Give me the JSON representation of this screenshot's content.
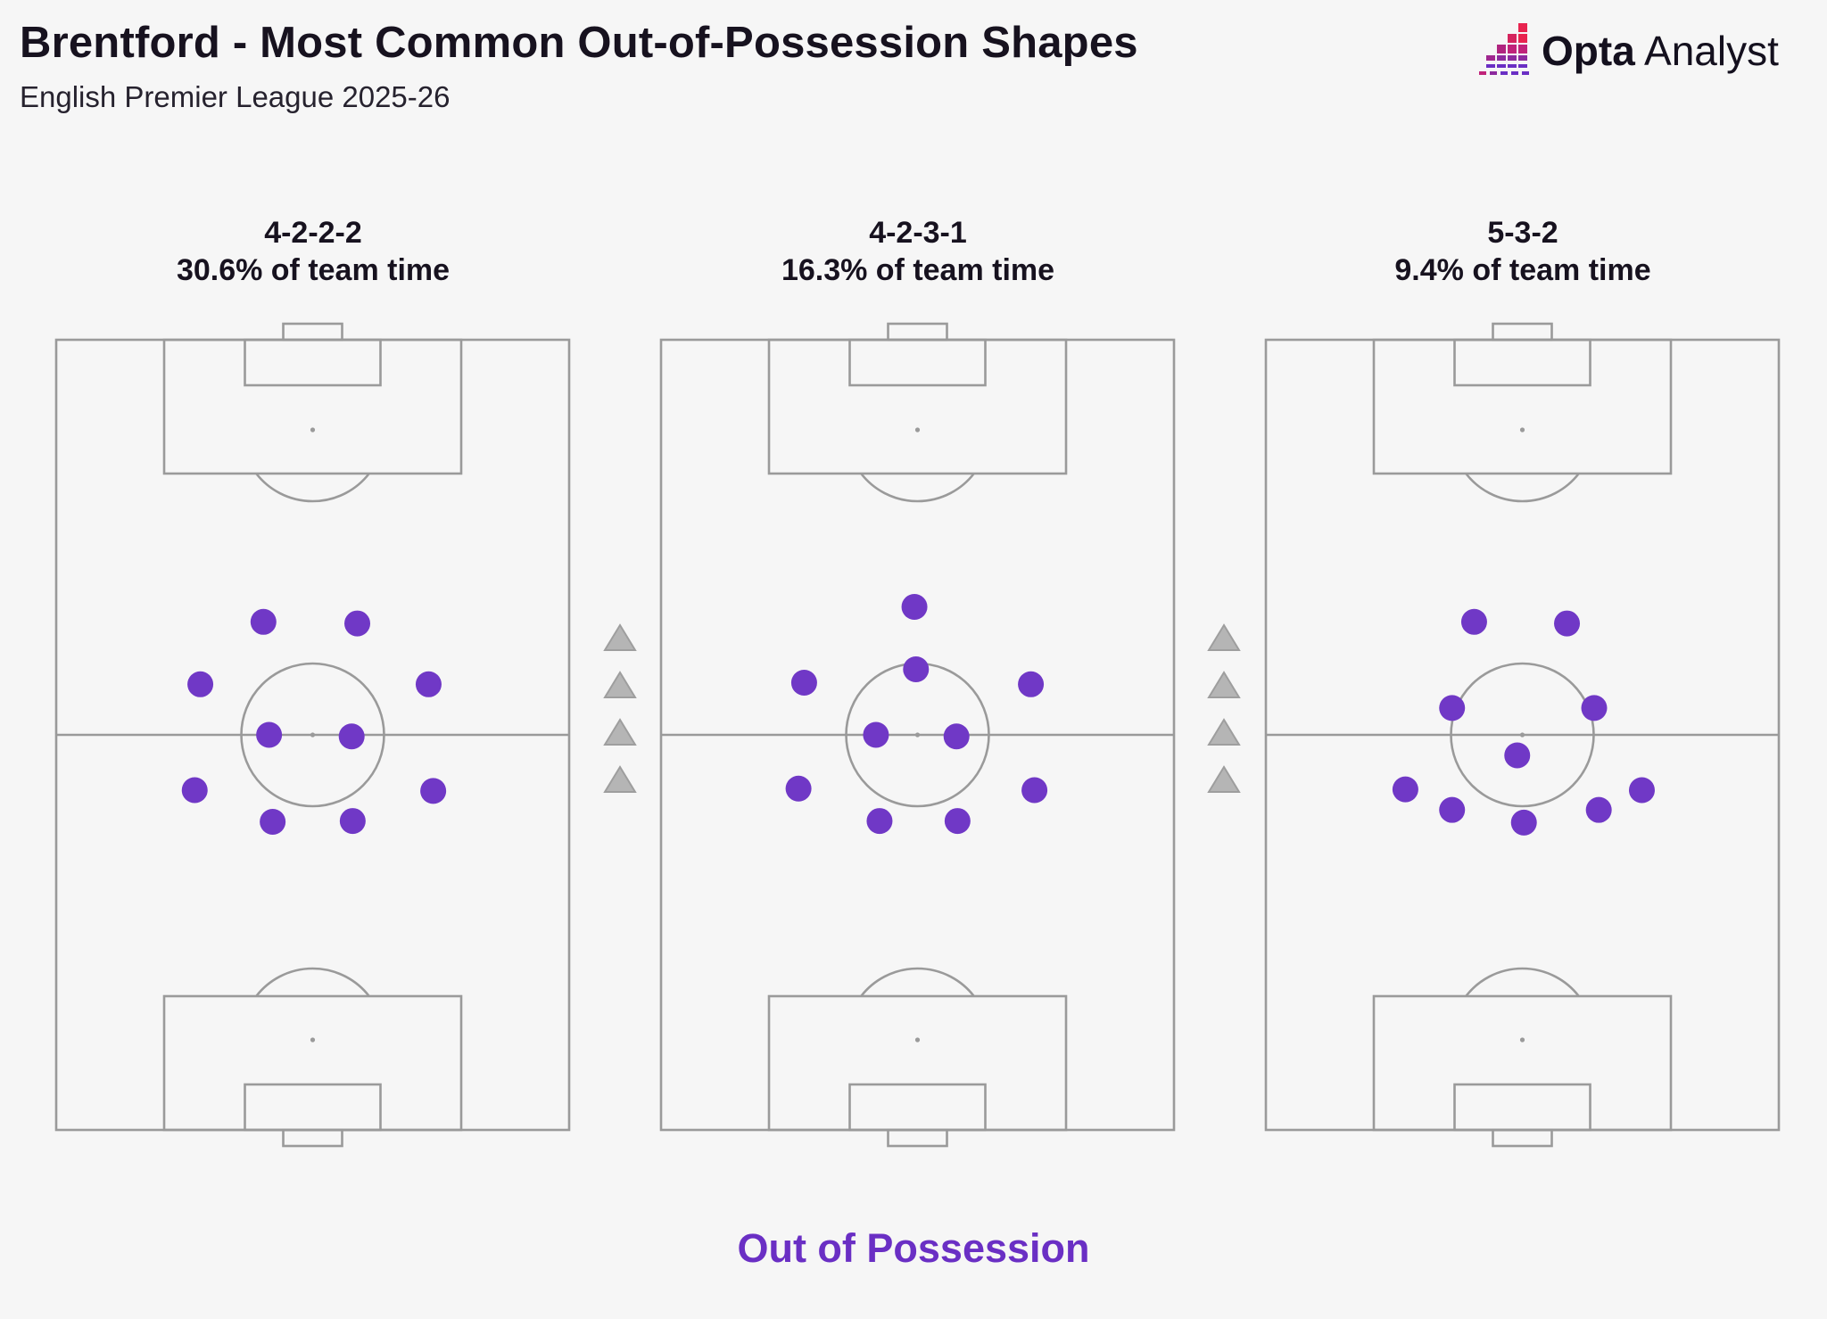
{
  "header": {
    "title": "Brentford - Most Common Out-of-Possession Shapes",
    "subtitle": "English Premier League 2025-26"
  },
  "brand": {
    "name_bold": "Opta",
    "name_light": " Analyst",
    "logo_colors": [
      "#e8244f",
      "#c0237a",
      "#8d2a9e",
      "#6a2fc4"
    ]
  },
  "footer": {
    "label": "Out of Possession"
  },
  "colors": {
    "background": "#f6f6f6",
    "pitch_lines": "#9a9a9a",
    "player_dot": "#7038c6",
    "footer_text": "#6a2fc4",
    "triangle": "#b5b5b5"
  },
  "chart_data": {
    "type": "scatter",
    "note_units": "x: 0-100 across pitch width (left to right); y: 0-100 along pitch length (top to bottom)",
    "formations": [
      {
        "name": "4-2-2-2",
        "share": "30.6% of team time",
        "players": [
          {
            "x": 40.4,
            "y": 35.7
          },
          {
            "x": 58.7,
            "y": 35.9
          },
          {
            "x": 28.1,
            "y": 43.6
          },
          {
            "x": 72.6,
            "y": 43.6
          },
          {
            "x": 41.5,
            "y": 50.0
          },
          {
            "x": 57.6,
            "y": 50.2
          },
          {
            "x": 27.0,
            "y": 57.0
          },
          {
            "x": 73.5,
            "y": 57.1
          },
          {
            "x": 42.2,
            "y": 61.0
          },
          {
            "x": 57.8,
            "y": 60.9
          }
        ]
      },
      {
        "name": "4-2-3-1",
        "share": "16.3% of team time",
        "players": [
          {
            "x": 49.4,
            "y": 33.8
          },
          {
            "x": 49.7,
            "y": 41.7
          },
          {
            "x": 27.9,
            "y": 43.4
          },
          {
            "x": 72.1,
            "y": 43.6
          },
          {
            "x": 41.9,
            "y": 50.0
          },
          {
            "x": 57.6,
            "y": 50.2
          },
          {
            "x": 26.8,
            "y": 56.8
          },
          {
            "x": 72.8,
            "y": 57.0
          },
          {
            "x": 42.6,
            "y": 60.9
          },
          {
            "x": 57.8,
            "y": 60.9
          }
        ]
      },
      {
        "name": "5-3-2",
        "share": "9.4% of team time",
        "players": [
          {
            "x": 40.6,
            "y": 35.7
          },
          {
            "x": 58.7,
            "y": 35.9
          },
          {
            "x": 36.3,
            "y": 46.6
          },
          {
            "x": 64.0,
            "y": 46.6
          },
          {
            "x": 49.0,
            "y": 52.6
          },
          {
            "x": 27.2,
            "y": 56.9
          },
          {
            "x": 73.3,
            "y": 57.0
          },
          {
            "x": 36.3,
            "y": 59.5
          },
          {
            "x": 64.9,
            "y": 59.5
          },
          {
            "x": 50.3,
            "y": 61.1
          }
        ]
      }
    ]
  }
}
